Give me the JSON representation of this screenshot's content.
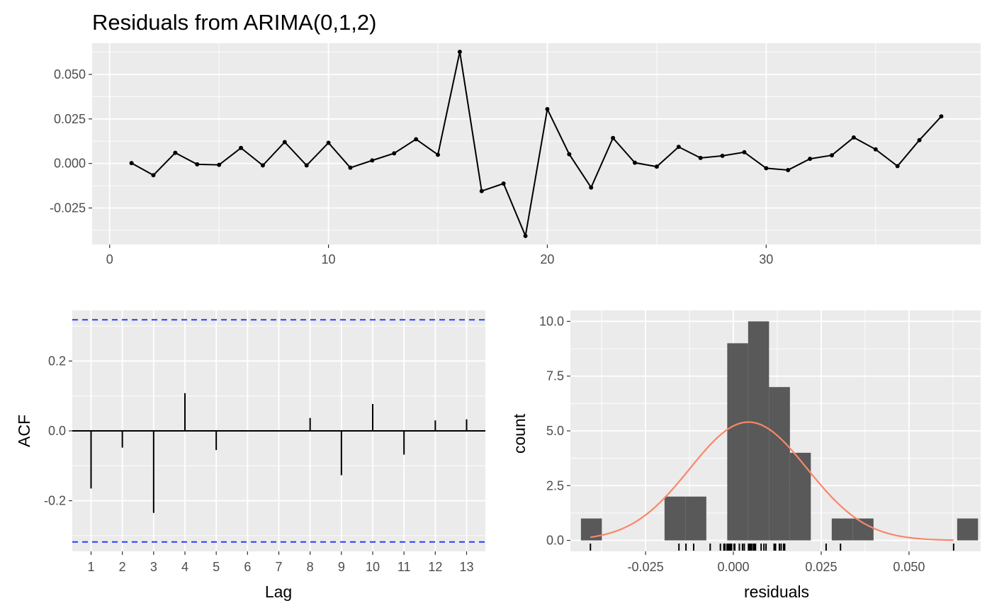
{
  "chart_data": [
    {
      "type": "line",
      "title": "Residuals from ARIMA(0,1,2)",
      "xlabel": "",
      "ylabel": "",
      "xlim": [
        -0.8,
        39.8
      ],
      "ylim": [
        -0.0455,
        0.0675
      ],
      "x_ticks": [
        0,
        10,
        20,
        30
      ],
      "y_ticks": [
        -0.025,
        0.0,
        0.025,
        0.05
      ],
      "x_tick_labels": [
        "0",
        "10",
        "20",
        "30"
      ],
      "y_tick_labels": [
        "-0.025",
        "0.000",
        "0.025",
        "0.050"
      ],
      "grid": true,
      "x": [
        1,
        2,
        3,
        4,
        5,
        6,
        7,
        8,
        9,
        10,
        11,
        12,
        13,
        14,
        15,
        16,
        17,
        18,
        19,
        20,
        21,
        22,
        23,
        24,
        25,
        26,
        27,
        28,
        29,
        30,
        31,
        32,
        33,
        34,
        35,
        36,
        37,
        38
      ],
      "y": [
        0.0002,
        -0.0066,
        0.006,
        -0.0005,
        -0.0008,
        0.0087,
        -0.0011,
        0.012,
        -0.0011,
        0.0116,
        -0.0024,
        0.0017,
        0.0057,
        0.0136,
        0.0049,
        0.0627,
        -0.0155,
        -0.0113,
        -0.0407,
        0.0305,
        0.0052,
        -0.0135,
        0.0143,
        0.0004,
        -0.0018,
        0.0093,
        0.0031,
        0.0043,
        0.0063,
        -0.0027,
        -0.0037,
        0.0026,
        0.0046,
        0.0146,
        0.0079,
        -0.0015,
        0.0131,
        0.0264
      ]
    },
    {
      "type": "bar",
      "xlabel": "Lag",
      "ylabel": "ACF",
      "xlim": [
        0.4,
        13.6
      ],
      "ylim": [
        -0.345,
        0.345
      ],
      "y_ticks": [
        -0.2,
        0.0,
        0.2
      ],
      "y_tick_labels": [
        "-0.2",
        "0.0",
        "0.2"
      ],
      "categories": [
        "1",
        "2",
        "3",
        "4",
        "5",
        "6",
        "7",
        "8",
        "9",
        "10",
        "11",
        "12",
        "13"
      ],
      "lags": [
        1,
        2,
        3,
        4,
        5,
        6,
        7,
        8,
        9,
        10,
        11,
        12,
        13
      ],
      "values": [
        -0.165,
        -0.048,
        -0.235,
        0.108,
        -0.055,
        0.0,
        0.0,
        0.037,
        -0.127,
        0.077,
        -0.068,
        0.03,
        0.033
      ],
      "confidence_bound": 0.318,
      "bound_color": "#2a3cf2",
      "grid": true
    },
    {
      "type": "bar",
      "subtype": "histogram",
      "xlabel": "residuals",
      "ylabel": "count",
      "xlim": [
        -0.0464,
        0.0704
      ],
      "ylim": [
        -0.5,
        10.5
      ],
      "x_ticks": [
        -0.025,
        0.0,
        0.025,
        0.05
      ],
      "x_tick_labels": [
        "-0.025",
        "0.000",
        "0.025",
        "0.050"
      ],
      "y_ticks": [
        0,
        2.5,
        5,
        7.5,
        10
      ],
      "y_tick_labels": [
        "0.0",
        "2.5",
        "5.0",
        "7.5",
        "10.0"
      ],
      "bin_width": 0.00595,
      "bin_starts": [
        -0.0434,
        -0.03745,
        -0.0315,
        -0.02555,
        -0.0196,
        -0.01365,
        -0.0077,
        -0.00175,
        0.0042,
        0.01015,
        0.0161,
        0.02205,
        0.028,
        0.03395,
        0.0399,
        0.04585,
        0.0518,
        0.05775,
        0.0637
      ],
      "counts": [
        1,
        0,
        0,
        0,
        2,
        2,
        0,
        9,
        10,
        7,
        4,
        0,
        1,
        1,
        0,
        0,
        0,
        0,
        1
      ],
      "bar_color": "#595959",
      "density_curve": {
        "mean": 0.0043,
        "sd": 0.0167,
        "n": 38,
        "color": "#f8876a"
      },
      "rug": [
        -0.0407,
        -0.0155,
        -0.0135,
        -0.0113,
        -0.0066,
        -0.0037,
        -0.0027,
        -0.0024,
        -0.0018,
        -0.0015,
        -0.0011,
        -0.0011,
        -0.0008,
        -0.0005,
        0.0002,
        0.0004,
        0.0017,
        0.0026,
        0.0031,
        0.0043,
        0.0046,
        0.0049,
        0.0052,
        0.0057,
        0.006,
        0.0063,
        0.0079,
        0.0087,
        0.0093,
        0.0116,
        0.012,
        0.0131,
        0.0136,
        0.0143,
        0.0146,
        0.0264,
        0.0305,
        0.0627
      ],
      "grid": true
    }
  ]
}
